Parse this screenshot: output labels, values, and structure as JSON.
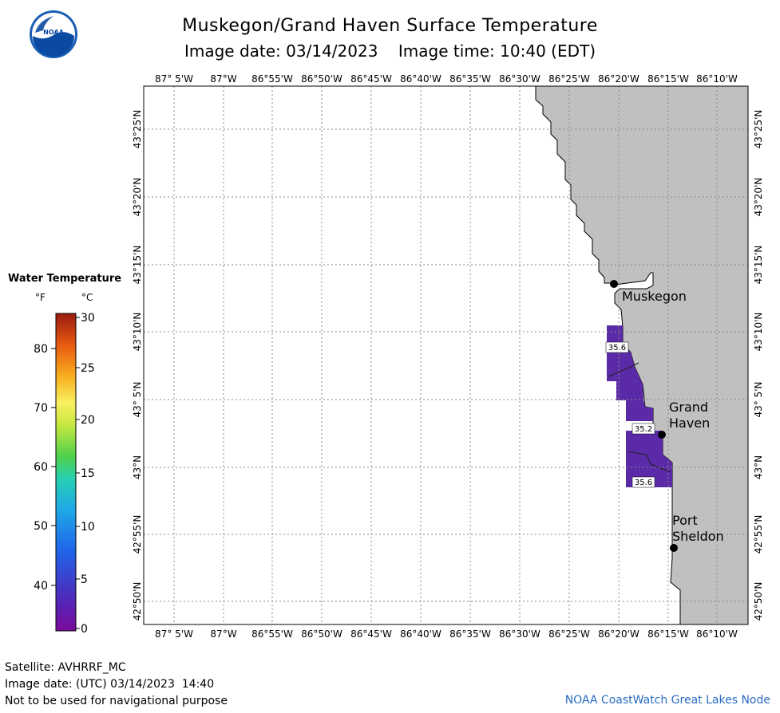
{
  "header": {
    "title": "Muskegon/Grand Haven Surface Temperature",
    "date_label": "Image date: 03/14/2023",
    "time_label": "Image time: 10:40 (EDT)"
  },
  "logo": {
    "text": "NOAA",
    "icon": "noaa-logo"
  },
  "map": {
    "lon_labels": [
      "87° 5'W",
      "87°W",
      "86°55'W",
      "86°50'W",
      "86°45'W",
      "86°40'W",
      "86°35'W",
      "86°30'W",
      "86°25'W",
      "86°20'W",
      "86°15'W",
      "86°10'W"
    ],
    "lat_labels": [
      "43°25'N",
      "43°20'N",
      "43°15'N",
      "43°10'N",
      "43° 5'N",
      "43°N",
      "42°55'N",
      "42°50'N"
    ],
    "cities": [
      {
        "name": "Muskegon"
      },
      {
        "name": "Grand Haven",
        "lines": [
          "Grand",
          "Haven"
        ]
      },
      {
        "name": "Port Sheldon",
        "lines": [
          "Port",
          "Sheldon"
        ]
      }
    ],
    "temperature_labels": [
      "35.6",
      "35.2",
      "35.6"
    ],
    "colors": {
      "land": "#c0c0c0",
      "water": "#ffffff",
      "observed_water": "#6a2fb0",
      "grid": "#888888"
    }
  },
  "legend": {
    "title": "Water Temperature",
    "unit_f": "°F",
    "unit_c": "°C",
    "f_ticks": [
      "80",
      "70",
      "60",
      "50",
      "40"
    ],
    "c_ticks": [
      "30",
      "25",
      "20",
      "15",
      "10",
      "5",
      "0"
    ]
  },
  "footer": {
    "satellite": "Satellite: AVHRRF_MC",
    "utc_date": "Image date: (UTC) 03/14/2023  14:40",
    "disclaimer": "Not to be used for navigational purpose",
    "credit": "NOAA CoastWatch Great Lakes Node"
  }
}
